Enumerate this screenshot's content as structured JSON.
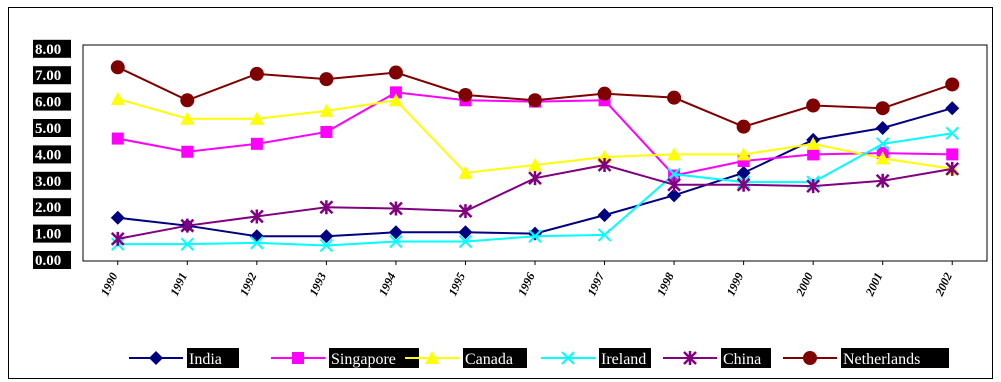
{
  "chart_data": {
    "type": "line",
    "title": "",
    "xlabel": "",
    "ylabel": "",
    "ylim": [
      0,
      8
    ],
    "yticks": [
      "0.00",
      "1.00",
      "2.00",
      "3.00",
      "4.00",
      "5.00",
      "6.00",
      "7.00",
      "8.00"
    ],
    "categories": [
      "1990",
      "1991",
      "1992",
      "1993",
      "1994",
      "1995",
      "1996",
      "1997",
      "1998",
      "1999",
      "2000",
      "2001",
      "2002"
    ],
    "grid": false,
    "legend_position": "bottom",
    "series": [
      {
        "name": "India",
        "color": "#000080",
        "marker": "diamond",
        "values": [
          1.6,
          1.3,
          0.9,
          0.9,
          1.05,
          1.05,
          1.0,
          1.7,
          2.45,
          3.3,
          4.55,
          5.0,
          5.75
        ]
      },
      {
        "name": "Singapore",
        "color": "#ff00ff",
        "marker": "square",
        "values": [
          4.6,
          4.1,
          4.4,
          4.85,
          6.35,
          6.05,
          6.0,
          6.05,
          3.2,
          3.75,
          4.0,
          4.05,
          4.0
        ]
      },
      {
        "name": "Canada",
        "color": "#ffff00",
        "marker": "triangle",
        "values": [
          6.1,
          5.35,
          5.35,
          5.65,
          6.05,
          3.3,
          3.6,
          3.9,
          4.0,
          4.0,
          4.4,
          3.85,
          3.45
        ]
      },
      {
        "name": "Ireland",
        "color": "#00ffff",
        "marker": "x",
        "values": [
          0.6,
          0.6,
          0.65,
          0.55,
          0.7,
          0.7,
          0.9,
          0.95,
          3.25,
          2.95,
          2.95,
          4.4,
          4.8
        ]
      },
      {
        "name": "China",
        "color": "#800080",
        "marker": "star",
        "values": [
          0.8,
          1.3,
          1.65,
          2.0,
          1.95,
          1.85,
          3.1,
          3.6,
          2.85,
          2.85,
          2.8,
          3.0,
          3.45
        ]
      },
      {
        "name": "Netherlands",
        "color": "#800000",
        "marker": "circle",
        "values": [
          7.3,
          6.05,
          7.05,
          6.85,
          7.1,
          6.25,
          6.05,
          6.3,
          6.15,
          5.05,
          5.85,
          5.75,
          6.65
        ]
      }
    ]
  }
}
